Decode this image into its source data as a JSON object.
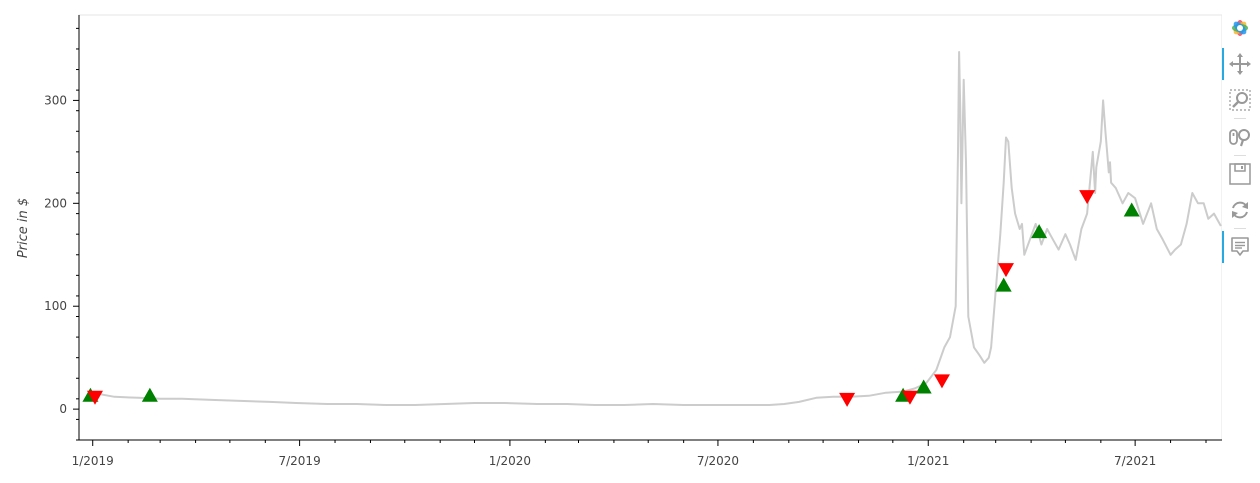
{
  "chart_data": {
    "type": "line",
    "title": "",
    "xlabel": "",
    "ylabel": "Price in $",
    "x_range": [
      "2018-12-20",
      "2021-09-15"
    ],
    "ylim": [
      -30,
      383
    ],
    "y_ticks": [
      0,
      100,
      200,
      300
    ],
    "x_ticks": [
      {
        "date": "2019-01-01",
        "label": "1/2019"
      },
      {
        "date": "2019-07-01",
        "label": "7/2019"
      },
      {
        "date": "2020-01-01",
        "label": "1/2020"
      },
      {
        "date": "2020-07-01",
        "label": "7/2020"
      },
      {
        "date": "2021-01-01",
        "label": "1/2021"
      },
      {
        "date": "2021-07-01",
        "label": "7/2021"
      }
    ],
    "grid": false,
    "line_color": "#cccccc",
    "price_series": {
      "x": [
        "2018-12-28",
        "2019-01-05",
        "2019-01-20",
        "2019-02-10",
        "2019-03-01",
        "2019-03-20",
        "2019-04-15",
        "2019-05-10",
        "2019-06-05",
        "2019-06-28",
        "2019-07-25",
        "2019-08-20",
        "2019-09-15",
        "2019-10-10",
        "2019-11-05",
        "2019-12-01",
        "2019-12-28",
        "2020-01-25",
        "2020-02-20",
        "2020-03-15",
        "2020-04-10",
        "2020-05-05",
        "2020-06-01",
        "2020-06-28",
        "2020-07-25",
        "2020-08-15",
        "2020-08-28",
        "2020-09-10",
        "2020-09-25",
        "2020-10-10",
        "2020-10-25",
        "2020-11-10",
        "2020-11-25",
        "2020-12-10",
        "2020-12-20",
        "2020-12-30",
        "2021-01-08",
        "2021-01-15",
        "2021-01-20",
        "2021-01-25",
        "2021-01-27",
        "2021-01-28",
        "2021-01-29",
        "2021-01-30",
        "2021-02-01",
        "2021-02-03",
        "2021-02-05",
        "2021-02-10",
        "2021-02-15",
        "2021-02-19",
        "2021-02-23",
        "2021-02-25",
        "2021-03-01",
        "2021-03-05",
        "2021-03-08",
        "2021-03-10",
        "2021-03-12",
        "2021-03-15",
        "2021-03-18",
        "2021-03-22",
        "2021-03-24",
        "2021-03-26",
        "2021-03-31",
        "2021-04-05",
        "2021-04-10",
        "2021-04-15",
        "2021-04-20",
        "2021-04-25",
        "2021-05-01",
        "2021-05-05",
        "2021-05-10",
        "2021-05-15",
        "2021-05-20",
        "2021-05-25",
        "2021-05-27",
        "2021-05-28",
        "2021-06-01",
        "2021-06-03",
        "2021-06-05",
        "2021-06-08",
        "2021-06-09",
        "2021-06-10",
        "2021-06-14",
        "2021-06-20",
        "2021-06-25",
        "2021-07-01",
        "2021-07-08",
        "2021-07-15",
        "2021-07-20",
        "2021-07-25",
        "2021-08-01",
        "2021-08-05",
        "2021-08-10",
        "2021-08-15",
        "2021-08-20",
        "2021-08-25",
        "2021-08-30",
        "2021-09-03",
        "2021-09-08",
        "2021-09-14"
      ],
      "y": [
        13,
        15,
        12,
        11,
        10,
        10,
        9,
        8,
        7,
        6,
        5,
        5,
        4,
        4,
        5,
        6,
        6,
        5,
        5,
        4,
        4,
        5,
        4,
        4,
        4,
        4,
        5,
        7,
        11,
        12,
        12,
        13,
        16,
        17,
        20,
        25,
        38,
        60,
        70,
        100,
        250,
        347,
        290,
        200,
        320,
        240,
        90,
        60,
        52,
        45,
        50,
        60,
        115,
        170,
        220,
        264,
        260,
        215,
        190,
        175,
        180,
        150,
        165,
        180,
        160,
        175,
        165,
        155,
        170,
        160,
        145,
        175,
        190,
        250,
        210,
        235,
        260,
        300,
        270,
        230,
        240,
        220,
        215,
        200,
        210,
        205,
        180,
        200,
        175,
        165,
        150,
        155,
        160,
        180,
        210,
        200,
        200,
        185,
        190,
        178
      ]
    },
    "buy_signals": {
      "marker": "triangle-up",
      "color": "#008000",
      "x": [
        "2018-12-30",
        "2019-02-20",
        "2020-12-10",
        "2020-12-28",
        "2021-03-08",
        "2021-04-08",
        "2021-06-28"
      ],
      "y": [
        13,
        13,
        13,
        21,
        120,
        172,
        193
      ]
    },
    "sell_signals": {
      "marker": "triangle-down",
      "color": "#ff0000",
      "x": [
        "2019-01-03",
        "2020-10-22",
        "2020-12-16",
        "2021-01-13",
        "2021-03-10",
        "2021-05-20"
      ],
      "y": [
        12,
        10,
        12,
        28,
        136,
        207
      ]
    }
  },
  "toolbar": {
    "tools": [
      {
        "name": "bokeh-logo-icon",
        "active": false
      },
      {
        "name": "pan-icon",
        "active": true
      },
      {
        "name": "box-zoom-icon",
        "active": false
      },
      {
        "name": "wheel-zoom-icon",
        "active": false
      },
      {
        "name": "save-icon",
        "active": false
      },
      {
        "name": "reset-icon",
        "active": false
      },
      {
        "name": "hover-icon",
        "active": true
      }
    ]
  }
}
